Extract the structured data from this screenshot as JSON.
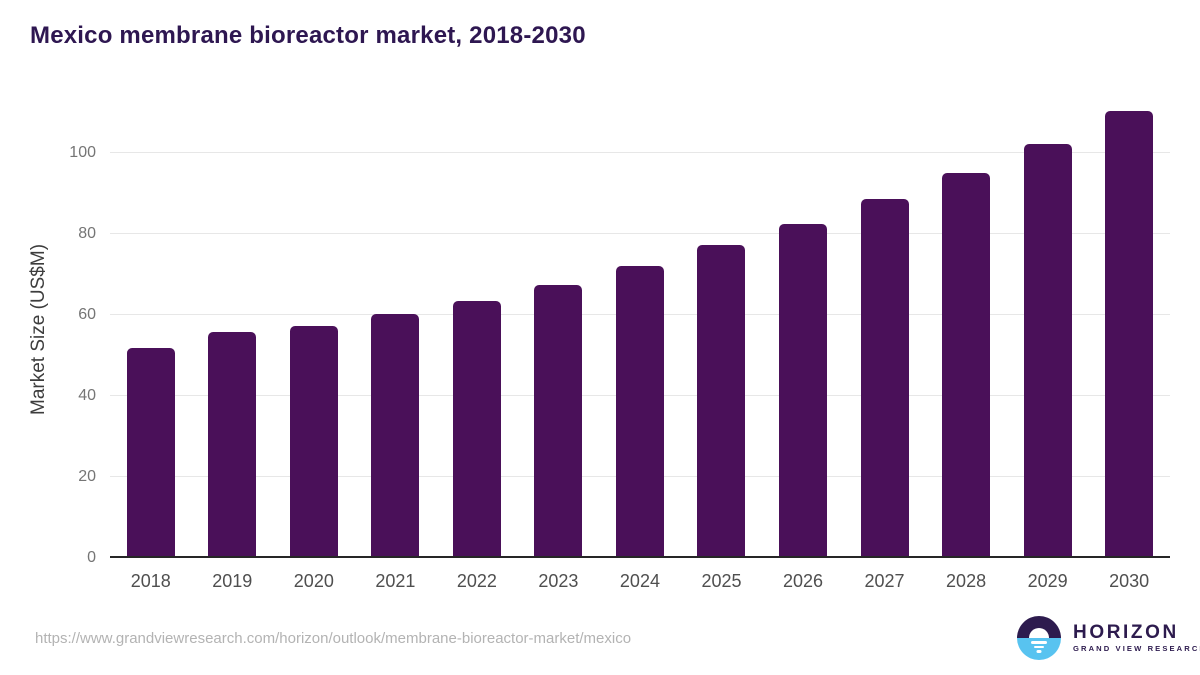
{
  "page": {
    "title": "Mexico membrane bioreactor market, 2018-2030",
    "source_url": "https://www.grandviewresearch.com/horizon/outlook/membrane-bioreactor-market/mexico"
  },
  "logo": {
    "brand": "HORIZON",
    "tagline": "GRAND VIEW RESEARCH",
    "icon": "horizon-sunset-icon"
  },
  "colors": {
    "background": "#ffffff",
    "bar": "#4a1059",
    "title_text": "#2e1751",
    "gridline": "#e7e7e7",
    "axis_line": "#262626",
    "ytick_text": "#757575",
    "xtick_text": "#4f4f4f",
    "yaxis_title_text": "#3d3d3d",
    "url_text": "#b3b3b3",
    "logo_purple": "#2d1b4e",
    "logo_blue": "#58c3f0"
  },
  "chart_data": {
    "type": "bar",
    "title": "Mexico membrane bioreactor market, 2018-2030",
    "categories": [
      "2018",
      "2019",
      "2020",
      "2021",
      "2022",
      "2023",
      "2024",
      "2025",
      "2026",
      "2027",
      "2028",
      "2029",
      "2030"
    ],
    "values": [
      51.9,
      55.8,
      57.3,
      60.1,
      63.4,
      67.4,
      72.1,
      77.2,
      82.5,
      88.7,
      95.0,
      102.1,
      110.2
    ],
    "xlabel": "",
    "ylabel": "Market Size (US$M)",
    "ylim": [
      0,
      113
    ],
    "yticks": [
      0,
      20,
      40,
      60,
      80,
      100
    ],
    "grid": "horizontal",
    "legend": "none",
    "bar_corner_radius": 5
  }
}
